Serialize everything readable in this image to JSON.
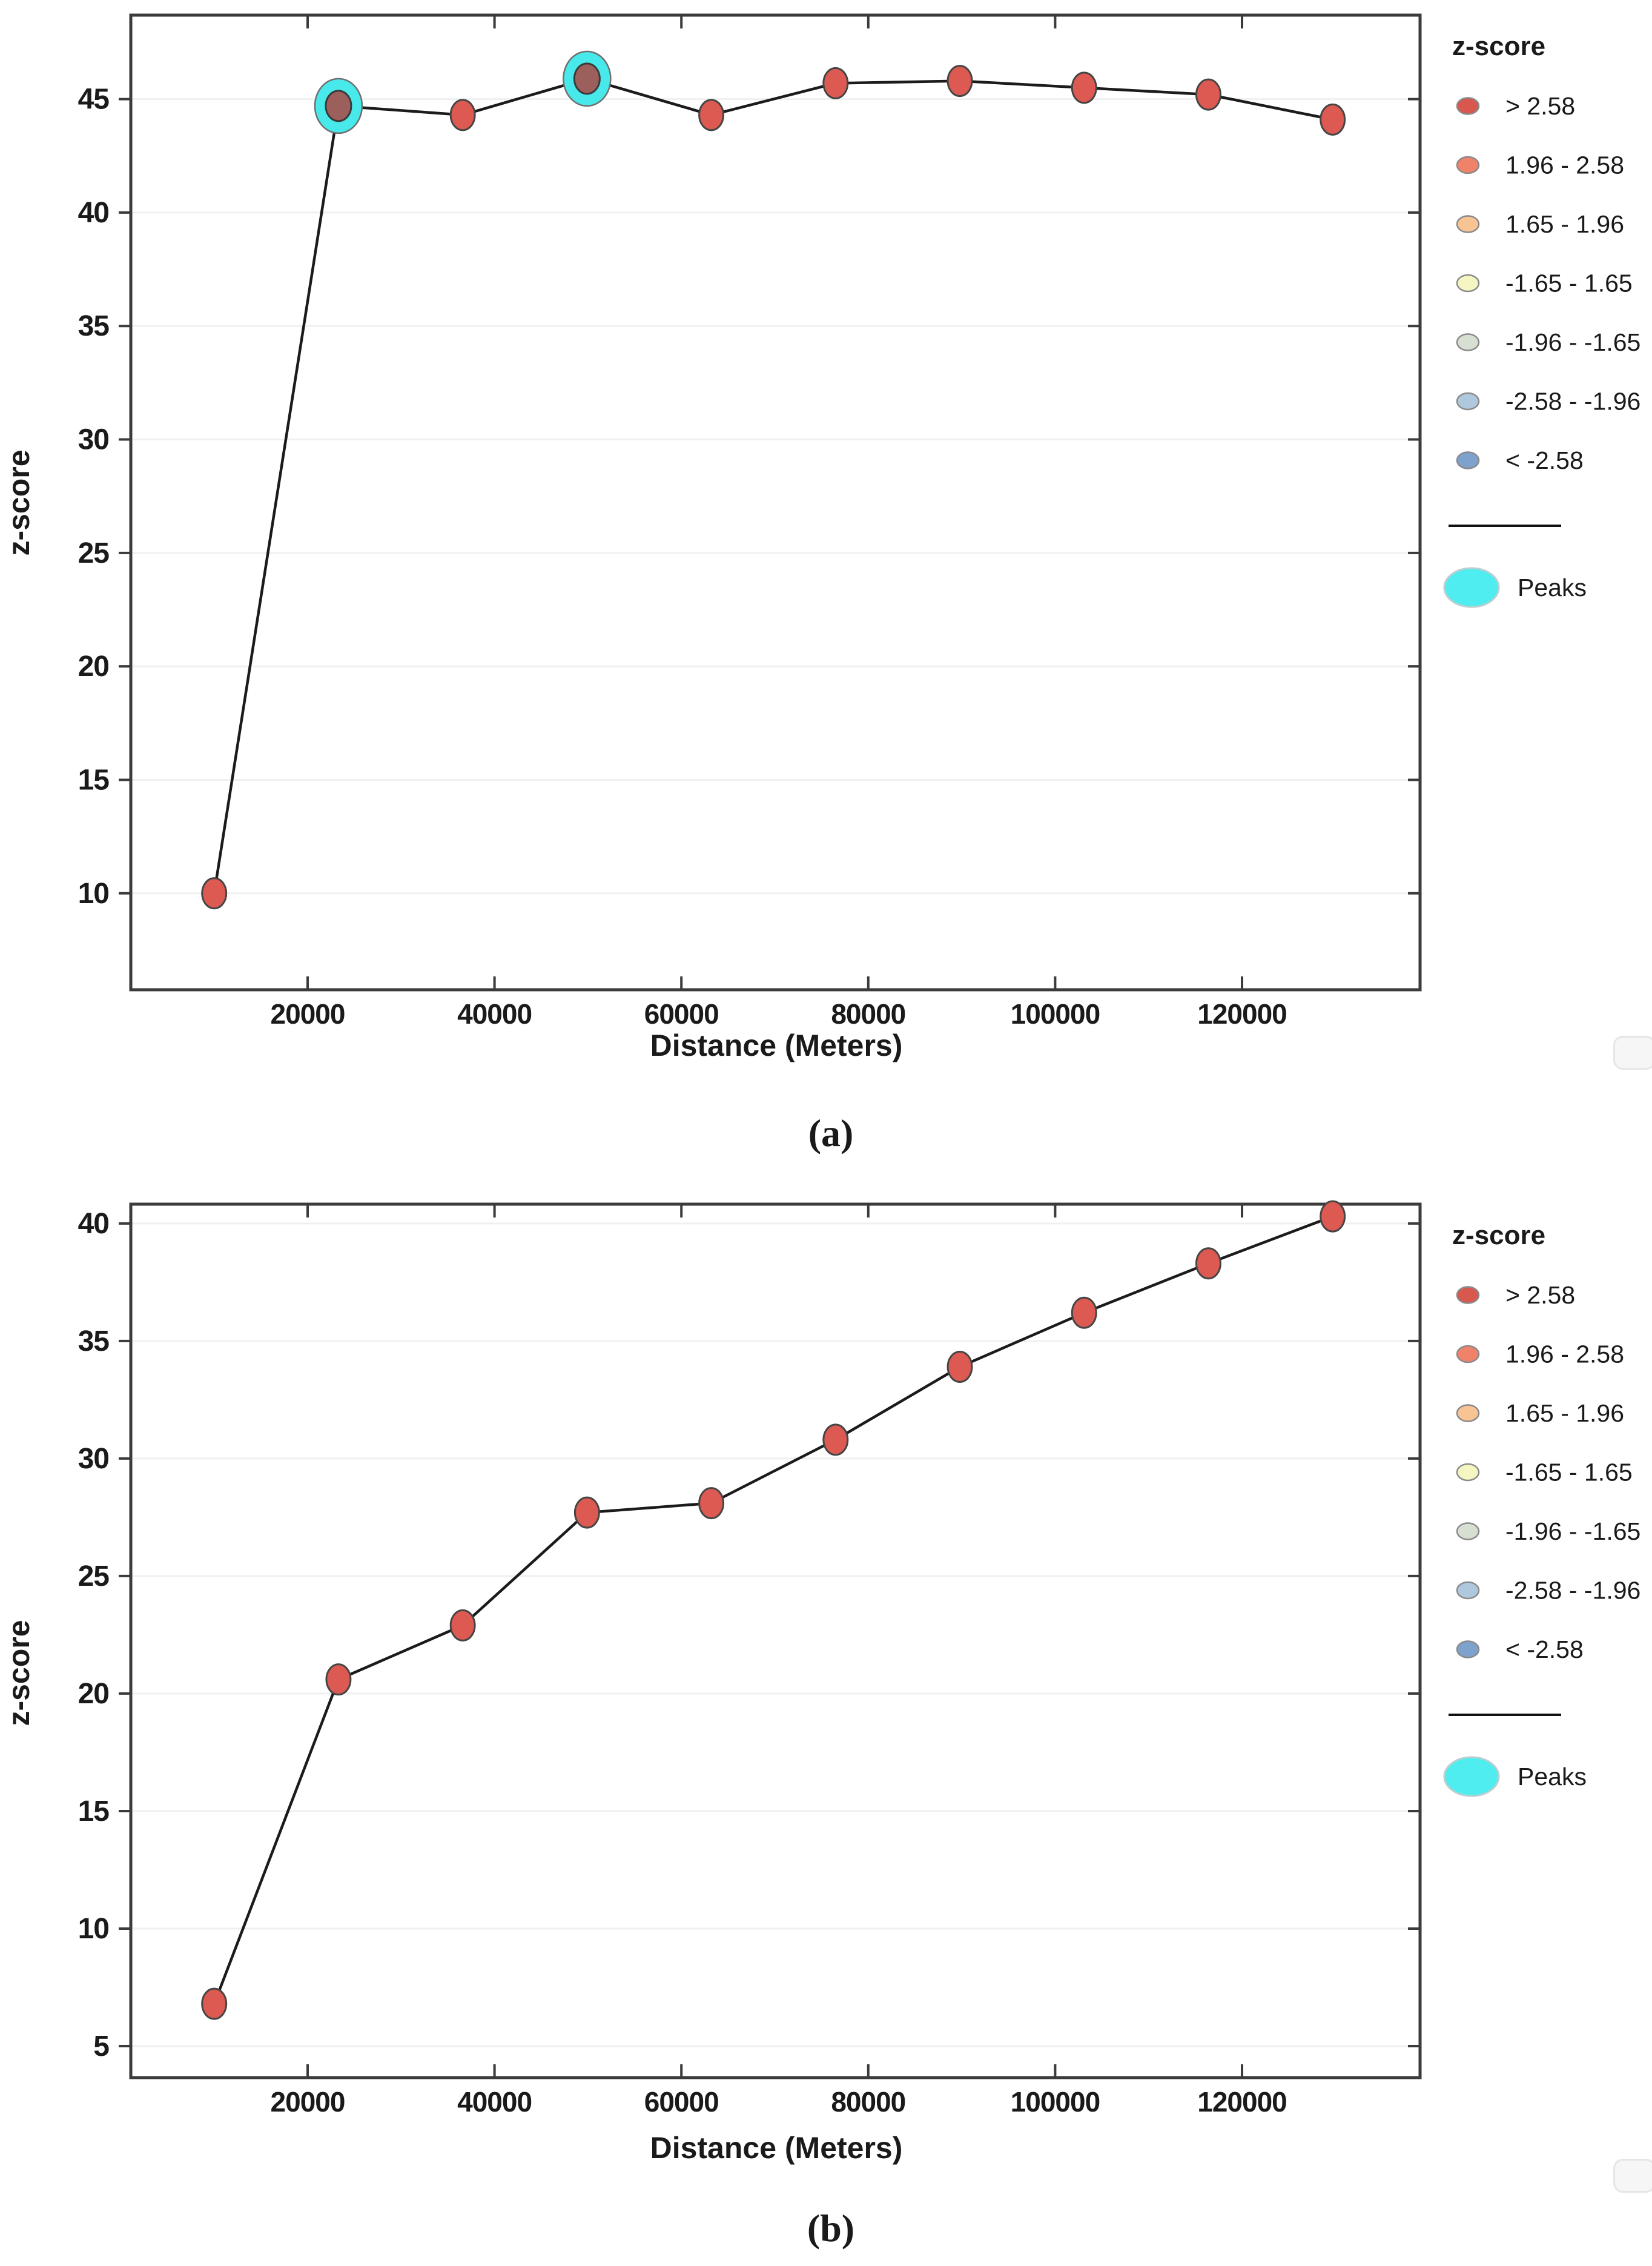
{
  "page": {
    "background": "#ffffff"
  },
  "legend": {
    "title": "z-score",
    "entries": [
      {
        "label": "> 2.58",
        "color": "#D8574F"
      },
      {
        "label": "1.96 - 2.58",
        "color": "#F0826A"
      },
      {
        "label": "1.65 - 1.96",
        "color": "#F8C493"
      },
      {
        "label": "-1.65 - 1.65",
        "color": "#F6F6C3"
      },
      {
        "label": "-1.96 - -1.65",
        "color": "#D7DED2"
      },
      {
        "label": "-2.58 - -1.96",
        "color": "#AFC8DD"
      },
      {
        "label": "< -2.58",
        "color": "#7FA1CD"
      }
    ],
    "peaks": {
      "label": "Peaks",
      "color": "#4FEDEF"
    },
    "position": "right"
  },
  "colors": {
    "marker": "#DC5A52",
    "marker_edge": "#454545",
    "peak_ring": "#48E9EB",
    "peak_inner": "#9D5F5C",
    "line": "#1b1b1b",
    "grid": "#f0f0f0",
    "axis": "#3b3b3b",
    "text": "#1a1a1a"
  },
  "chart_data": [
    {
      "id": "a",
      "type": "line",
      "caption": "(a)",
      "xlabel": "Distance (Meters)",
      "ylabel": "z-score",
      "x": [
        10000,
        23300,
        36600,
        49900,
        63200,
        76500,
        89800,
        103100,
        116400,
        129700
      ],
      "y": [
        10.0,
        44.7,
        44.3,
        45.9,
        44.3,
        45.7,
        45.8,
        45.5,
        45.2,
        44.1
      ],
      "peaks_index": [
        1,
        3
      ],
      "x_ticks": [
        20000,
        40000,
        60000,
        80000,
        100000,
        120000
      ],
      "y_ticks": [
        10,
        15,
        20,
        25,
        30,
        35,
        40,
        45
      ],
      "xlim": [
        1076,
        139053
      ],
      "ylim": [
        5.75,
        48.7
      ],
      "grid": "horizontal-only",
      "legend_position": "right"
    },
    {
      "id": "b",
      "type": "line",
      "caption": "(b)",
      "xlabel": "Distance (Meters)",
      "ylabel": "z-score",
      "x": [
        10000,
        23300,
        36600,
        49900,
        63200,
        76500,
        89800,
        103100,
        116400,
        129700
      ],
      "y": [
        6.8,
        20.6,
        22.9,
        27.7,
        28.1,
        30.8,
        33.9,
        36.2,
        38.3,
        40.3
      ],
      "peaks_index": [],
      "x_ticks": [
        20000,
        40000,
        60000,
        80000,
        100000,
        120000
      ],
      "y_ticks": [
        5,
        10,
        15,
        20,
        25,
        30,
        35,
        40
      ],
      "xlim": [
        1076,
        139053
      ],
      "ylim": [
        3.66,
        40.82
      ],
      "grid": "horizontal-only",
      "legend_position": "right"
    }
  ]
}
